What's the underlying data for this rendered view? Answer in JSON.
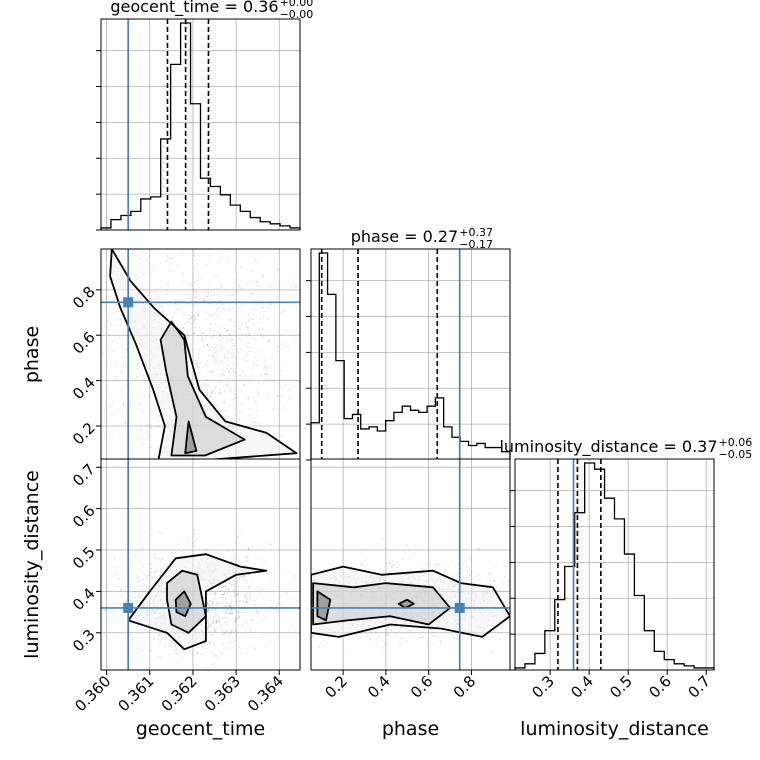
{
  "chart_data": {
    "type": "corner",
    "parameters": [
      "geocent_time",
      "phase",
      "luminosity_distance"
    ],
    "truth_color": "#4682b4",
    "truth": {
      "geocent_time": 0.3605,
      "phase": 0.745,
      "luminosity_distance": 0.36
    },
    "ranges": {
      "geocent_time": [
        0.35987,
        0.36448
      ],
      "phase": [
        0.05,
        0.98
      ],
      "luminosity_distance": [
        0.21,
        0.72
      ]
    },
    "ticks": {
      "geocent_time": {
        "values": [
          0.36,
          0.361,
          0.362,
          0.363,
          0.364
        ],
        "labels": [
          "0.360",
          "0.361",
          "0.362",
          "0.363",
          "0.364"
        ]
      },
      "phase": {
        "values": [
          0.2,
          0.4,
          0.6,
          0.8
        ],
        "labels": [
          "0.2",
          "0.4",
          "0.6",
          "0.8"
        ]
      },
      "luminosity_distance": {
        "values": [
          0.3,
          0.4,
          0.5,
          0.6,
          0.7
        ],
        "labels": [
          "0.3",
          "0.4",
          "0.5",
          "0.6",
          "0.7"
        ]
      }
    },
    "titles": {
      "geocent_time": {
        "text": "geocent_time = 0.36",
        "plus": "+0.00",
        "minus": "−0.00",
        "quantiles": [
          0.36141,
          0.36183,
          0.36236
        ]
      },
      "phase": {
        "text": "phase = 0.27",
        "plus": "+0.37",
        "minus": "−0.17",
        "quantiles": [
          0.1,
          0.27,
          0.64
        ]
      },
      "luminosity_distance": {
        "text": "luminosity_distance = 0.37",
        "plus": "+0.06",
        "minus": "−0.05",
        "quantiles": [
          0.32,
          0.37,
          0.43
        ]
      }
    },
    "histograms": {
      "geocent_time": [
        0.01,
        0.05,
        0.07,
        0.09,
        0.15,
        0.16,
        0.44,
        0.8,
        1.0,
        0.61,
        0.25,
        0.21,
        0.17,
        0.12,
        0.09,
        0.06,
        0.04,
        0.03,
        0.02,
        0.01
      ],
      "phase": [
        0.18,
        1.0,
        0.8,
        0.48,
        0.2,
        0.22,
        0.15,
        0.16,
        0.14,
        0.19,
        0.23,
        0.26,
        0.24,
        0.23,
        0.26,
        0.3,
        0.16,
        0.11,
        0.09,
        0.07,
        0.08,
        0.06,
        0.06,
        0.04
      ],
      "luminosity_distance": [
        0.01,
        0.03,
        0.08,
        0.19,
        0.34,
        0.5,
        0.76,
        1.0,
        0.97,
        0.83,
        0.73,
        0.56,
        0.36,
        0.19,
        0.09,
        0.05,
        0.03,
        0.02,
        0.01,
        0.01
      ]
    },
    "contours_2d": {
      "phase_vs_geocent_time": [
        [
          [
            0.36012,
            0.98
          ],
          [
            0.36055,
            0.84
          ],
          [
            0.3611,
            0.72
          ],
          [
            0.3618,
            0.6
          ],
          [
            0.36215,
            0.36
          ],
          [
            0.36275,
            0.22
          ],
          [
            0.3637,
            0.17
          ],
          [
            0.3644,
            0.08
          ],
          [
            0.3623,
            0.05
          ],
          [
            0.3612,
            0.05
          ],
          [
            0.36135,
            0.2
          ],
          [
            0.36108,
            0.36
          ],
          [
            0.36068,
            0.56
          ],
          [
            0.36032,
            0.72
          ],
          [
            0.36008,
            0.86
          ]
        ],
        [
          [
            0.3615,
            0.66
          ],
          [
            0.3618,
            0.58
          ],
          [
            0.36188,
            0.42
          ],
          [
            0.3623,
            0.24
          ],
          [
            0.3632,
            0.14
          ],
          [
            0.36228,
            0.07
          ],
          [
            0.3615,
            0.07
          ],
          [
            0.36162,
            0.24
          ],
          [
            0.36138,
            0.44
          ],
          [
            0.36125,
            0.58
          ]
        ],
        [
          [
            0.36182,
            0.08
          ],
          [
            0.3619,
            0.22
          ],
          [
            0.36208,
            0.09
          ]
        ]
      ],
      "luminosity_distance_vs_geocent_time": [
        [
          [
            0.3605,
            0.33
          ],
          [
            0.361,
            0.4
          ],
          [
            0.3616,
            0.48
          ],
          [
            0.3623,
            0.49
          ],
          [
            0.3631,
            0.46
          ],
          [
            0.3637,
            0.45
          ],
          [
            0.363,
            0.44
          ],
          [
            0.3623,
            0.4
          ],
          [
            0.3623,
            0.28
          ],
          [
            0.3618,
            0.26
          ],
          [
            0.3614,
            0.3
          ],
          [
            0.3608,
            0.32
          ]
        ],
        [
          [
            0.3614,
            0.42
          ],
          [
            0.36175,
            0.45
          ],
          [
            0.3621,
            0.44
          ],
          [
            0.3623,
            0.34
          ],
          [
            0.3619,
            0.3
          ],
          [
            0.3615,
            0.32
          ],
          [
            0.3614,
            0.38
          ]
        ],
        [
          [
            0.3616,
            0.38
          ],
          [
            0.3618,
            0.4
          ],
          [
            0.36195,
            0.37
          ],
          [
            0.36182,
            0.34
          ],
          [
            0.36162,
            0.35
          ]
        ]
      ],
      "luminosity_distance_vs_phase": [
        [
          [
            0.05,
            0.44
          ],
          [
            0.2,
            0.46
          ],
          [
            0.38,
            0.44
          ],
          [
            0.62,
            0.45
          ],
          [
            0.75,
            0.42
          ],
          [
            0.9,
            0.41
          ],
          [
            0.98,
            0.34
          ],
          [
            0.85,
            0.29
          ],
          [
            0.66,
            0.31
          ],
          [
            0.42,
            0.32
          ],
          [
            0.18,
            0.29
          ],
          [
            0.05,
            0.3
          ]
        ],
        [
          [
            0.06,
            0.42
          ],
          [
            0.25,
            0.41
          ],
          [
            0.4,
            0.42
          ],
          [
            0.62,
            0.41
          ],
          [
            0.7,
            0.36
          ],
          [
            0.6,
            0.32
          ],
          [
            0.42,
            0.34
          ],
          [
            0.22,
            0.33
          ],
          [
            0.06,
            0.32
          ]
        ],
        [
          [
            0.08,
            0.4
          ],
          [
            0.14,
            0.38
          ],
          [
            0.12,
            0.33
          ],
          [
            0.08,
            0.34
          ]
        ],
        [
          [
            0.46,
            0.37
          ],
          [
            0.5,
            0.38
          ],
          [
            0.53,
            0.37
          ],
          [
            0.49,
            0.36
          ]
        ]
      ]
    }
  }
}
